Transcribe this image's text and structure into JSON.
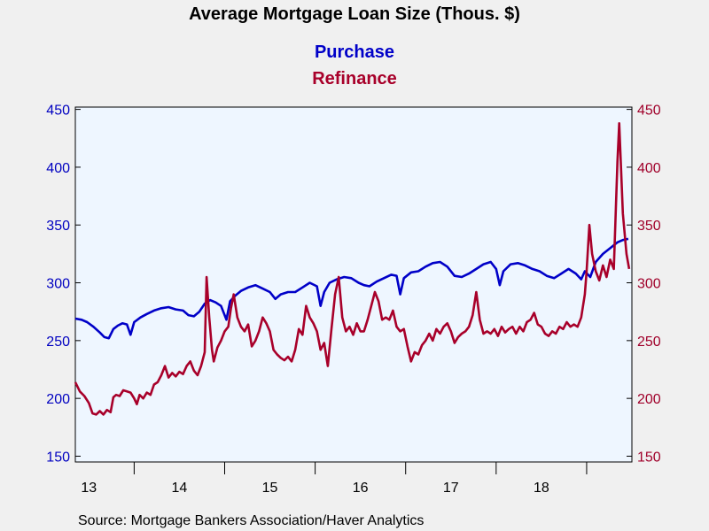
{
  "chart_data": {
    "type": "line",
    "title": "Average Mortgage Loan Size (Thous. $)",
    "source": "Source:  Mortgage Bankers Association/Haver Analytics",
    "x_tick_labels": [
      "13",
      "14",
      "15",
      "16",
      "17",
      "18"
    ],
    "x_range": [
      2012.85,
      2019.0
    ],
    "y_left": {
      "range": [
        145,
        452
      ],
      "ticks": [
        150,
        200,
        250,
        300,
        350,
        400,
        450
      ],
      "color": "#0000c0"
    },
    "y_right": {
      "range": [
        145,
        452
      ],
      "ticks": [
        150,
        200,
        250,
        300,
        350,
        400,
        450
      ],
      "color": "#a0002a"
    },
    "grid": false,
    "legend": "top-center",
    "series": [
      {
        "name": "Purchase",
        "color": "#0000c8",
        "axis": "left",
        "points": [
          [
            2012.85,
            269
          ],
          [
            2012.92,
            268
          ],
          [
            2012.98,
            266
          ],
          [
            2013.05,
            262
          ],
          [
            2013.12,
            257
          ],
          [
            2013.17,
            253
          ],
          [
            2013.22,
            252
          ],
          [
            2013.27,
            260
          ],
          [
            2013.32,
            263
          ],
          [
            2013.37,
            265
          ],
          [
            2013.42,
            264
          ],
          [
            2013.46,
            255
          ],
          [
            2013.5,
            266
          ],
          [
            2013.57,
            270
          ],
          [
            2013.64,
            273
          ],
          [
            2013.72,
            276
          ],
          [
            2013.8,
            278
          ],
          [
            2013.88,
            279
          ],
          [
            2013.96,
            277
          ],
          [
            2014.04,
            276
          ],
          [
            2014.1,
            272
          ],
          [
            2014.16,
            271
          ],
          [
            2014.22,
            275
          ],
          [
            2014.28,
            282
          ],
          [
            2014.34,
            285
          ],
          [
            2014.4,
            283
          ],
          [
            2014.46,
            280
          ],
          [
            2014.52,
            268
          ],
          [
            2014.56,
            284
          ],
          [
            2014.62,
            289
          ],
          [
            2014.68,
            293
          ],
          [
            2014.76,
            296
          ],
          [
            2014.84,
            298
          ],
          [
            2014.92,
            295
          ],
          [
            2015.0,
            292
          ],
          [
            2015.06,
            286
          ],
          [
            2015.12,
            290
          ],
          [
            2015.2,
            292
          ],
          [
            2015.28,
            292
          ],
          [
            2015.36,
            296
          ],
          [
            2015.44,
            300
          ],
          [
            2015.52,
            297
          ],
          [
            2015.56,
            280
          ],
          [
            2015.6,
            292
          ],
          [
            2015.66,
            300
          ],
          [
            2015.74,
            303
          ],
          [
            2015.82,
            305
          ],
          [
            2015.9,
            304
          ],
          [
            2015.98,
            300
          ],
          [
            2016.04,
            298
          ],
          [
            2016.1,
            297
          ],
          [
            2016.18,
            301
          ],
          [
            2016.26,
            304
          ],
          [
            2016.34,
            307
          ],
          [
            2016.4,
            306
          ],
          [
            2016.44,
            290
          ],
          [
            2016.48,
            304
          ],
          [
            2016.56,
            309
          ],
          [
            2016.64,
            310
          ],
          [
            2016.72,
            314
          ],
          [
            2016.8,
            317
          ],
          [
            2016.88,
            318
          ],
          [
            2016.96,
            314
          ],
          [
            2017.04,
            306
          ],
          [
            2017.12,
            305
          ],
          [
            2017.2,
            308
          ],
          [
            2017.28,
            312
          ],
          [
            2017.36,
            316
          ],
          [
            2017.44,
            318
          ],
          [
            2017.5,
            312
          ],
          [
            2017.54,
            298
          ],
          [
            2017.58,
            310
          ],
          [
            2017.66,
            316
          ],
          [
            2017.74,
            317
          ],
          [
            2017.82,
            315
          ],
          [
            2017.9,
            312
          ],
          [
            2017.98,
            310
          ],
          [
            2018.06,
            306
          ],
          [
            2018.14,
            304
          ],
          [
            2018.22,
            308
          ],
          [
            2018.3,
            312
          ],
          [
            2018.38,
            308
          ],
          [
            2018.44,
            303
          ],
          [
            2018.48,
            310
          ],
          [
            2018.54,
            305
          ],
          [
            2018.6,
            318
          ],
          [
            2018.68,
            325
          ],
          [
            2018.76,
            330
          ],
          [
            2018.84,
            335
          ],
          [
            2018.9,
            337
          ],
          [
            2018.96,
            338
          ]
        ]
      },
      {
        "name": "Refinance",
        "color": "#a8002a",
        "axis": "right",
        "points": [
          [
            2012.85,
            214
          ],
          [
            2012.9,
            206
          ],
          [
            2012.95,
            202
          ],
          [
            2013.0,
            196
          ],
          [
            2013.04,
            187
          ],
          [
            2013.08,
            186
          ],
          [
            2013.12,
            189
          ],
          [
            2013.16,
            186
          ],
          [
            2013.2,
            190
          ],
          [
            2013.24,
            188
          ],
          [
            2013.27,
            201
          ],
          [
            2013.3,
            203
          ],
          [
            2013.34,
            202
          ],
          [
            2013.38,
            207
          ],
          [
            2013.42,
            206
          ],
          [
            2013.46,
            205
          ],
          [
            2013.5,
            200
          ],
          [
            2013.53,
            195
          ],
          [
            2013.56,
            203
          ],
          [
            2013.6,
            200
          ],
          [
            2013.64,
            205
          ],
          [
            2013.68,
            203
          ],
          [
            2013.72,
            212
          ],
          [
            2013.76,
            214
          ],
          [
            2013.8,
            220
          ],
          [
            2013.84,
            228
          ],
          [
            2013.88,
            218
          ],
          [
            2013.92,
            222
          ],
          [
            2013.96,
            219
          ],
          [
            2014.0,
            223
          ],
          [
            2014.04,
            221
          ],
          [
            2014.08,
            228
          ],
          [
            2014.12,
            232
          ],
          [
            2014.16,
            224
          ],
          [
            2014.2,
            220
          ],
          [
            2014.24,
            228
          ],
          [
            2014.28,
            240
          ],
          [
            2014.3,
            305
          ],
          [
            2014.33,
            270
          ],
          [
            2014.36,
            242
          ],
          [
            2014.38,
            232
          ],
          [
            2014.42,
            244
          ],
          [
            2014.46,
            250
          ],
          [
            2014.5,
            258
          ],
          [
            2014.54,
            262
          ],
          [
            2014.57,
            278
          ],
          [
            2014.6,
            290
          ],
          [
            2014.64,
            270
          ],
          [
            2014.68,
            262
          ],
          [
            2014.72,
            258
          ],
          [
            2014.76,
            264
          ],
          [
            2014.8,
            245
          ],
          [
            2014.84,
            250
          ],
          [
            2014.88,
            258
          ],
          [
            2014.92,
            270
          ],
          [
            2014.96,
            265
          ],
          [
            2015.0,
            258
          ],
          [
            2015.04,
            242
          ],
          [
            2015.08,
            238
          ],
          [
            2015.12,
            235
          ],
          [
            2015.16,
            233
          ],
          [
            2015.2,
            236
          ],
          [
            2015.24,
            232
          ],
          [
            2015.28,
            242
          ],
          [
            2015.32,
            260
          ],
          [
            2015.36,
            255
          ],
          [
            2015.4,
            280
          ],
          [
            2015.44,
            270
          ],
          [
            2015.48,
            265
          ],
          [
            2015.52,
            258
          ],
          [
            2015.56,
            242
          ],
          [
            2015.6,
            248
          ],
          [
            2015.64,
            228
          ],
          [
            2015.68,
            260
          ],
          [
            2015.72,
            290
          ],
          [
            2015.76,
            305
          ],
          [
            2015.8,
            270
          ],
          [
            2015.84,
            258
          ],
          [
            2015.88,
            262
          ],
          [
            2015.92,
            255
          ],
          [
            2015.96,
            265
          ],
          [
            2016.0,
            258
          ],
          [
            2016.04,
            258
          ],
          [
            2016.08,
            268
          ],
          [
            2016.12,
            280
          ],
          [
            2016.16,
            292
          ],
          [
            2016.2,
            284
          ],
          [
            2016.24,
            268
          ],
          [
            2016.28,
            270
          ],
          [
            2016.32,
            268
          ],
          [
            2016.36,
            276
          ],
          [
            2016.4,
            262
          ],
          [
            2016.44,
            258
          ],
          [
            2016.48,
            260
          ],
          [
            2016.52,
            245
          ],
          [
            2016.56,
            232
          ],
          [
            2016.6,
            240
          ],
          [
            2016.64,
            238
          ],
          [
            2016.68,
            246
          ],
          [
            2016.72,
            250
          ],
          [
            2016.76,
            256
          ],
          [
            2016.8,
            250
          ],
          [
            2016.84,
            260
          ],
          [
            2016.88,
            256
          ],
          [
            2016.92,
            262
          ],
          [
            2016.96,
            265
          ],
          [
            2017.0,
            258
          ],
          [
            2017.04,
            248
          ],
          [
            2017.08,
            253
          ],
          [
            2017.12,
            256
          ],
          [
            2017.16,
            258
          ],
          [
            2017.2,
            262
          ],
          [
            2017.24,
            272
          ],
          [
            2017.28,
            292
          ],
          [
            2017.32,
            268
          ],
          [
            2017.36,
            256
          ],
          [
            2017.4,
            258
          ],
          [
            2017.44,
            256
          ],
          [
            2017.48,
            260
          ],
          [
            2017.52,
            254
          ],
          [
            2017.56,
            262
          ],
          [
            2017.6,
            257
          ],
          [
            2017.64,
            260
          ],
          [
            2017.68,
            262
          ],
          [
            2017.72,
            256
          ],
          [
            2017.76,
            262
          ],
          [
            2017.8,
            258
          ],
          [
            2017.84,
            266
          ],
          [
            2017.88,
            268
          ],
          [
            2017.92,
            274
          ],
          [
            2017.96,
            264
          ],
          [
            2018.0,
            262
          ],
          [
            2018.04,
            256
          ],
          [
            2018.08,
            254
          ],
          [
            2018.12,
            258
          ],
          [
            2018.16,
            256
          ],
          [
            2018.2,
            262
          ],
          [
            2018.24,
            260
          ],
          [
            2018.28,
            266
          ],
          [
            2018.32,
            262
          ],
          [
            2018.36,
            264
          ],
          [
            2018.4,
            262
          ],
          [
            2018.44,
            270
          ],
          [
            2018.48,
            290
          ],
          [
            2018.5,
            310
          ],
          [
            2018.53,
            350
          ],
          [
            2018.56,
            325
          ],
          [
            2018.6,
            310
          ],
          [
            2018.64,
            302
          ],
          [
            2018.68,
            315
          ],
          [
            2018.72,
            305
          ],
          [
            2018.76,
            320
          ],
          [
            2018.8,
            312
          ],
          [
            2018.84,
            405
          ],
          [
            2018.86,
            438
          ],
          [
            2018.9,
            360
          ],
          [
            2018.94,
            325
          ],
          [
            2018.97,
            312
          ]
        ]
      }
    ]
  }
}
